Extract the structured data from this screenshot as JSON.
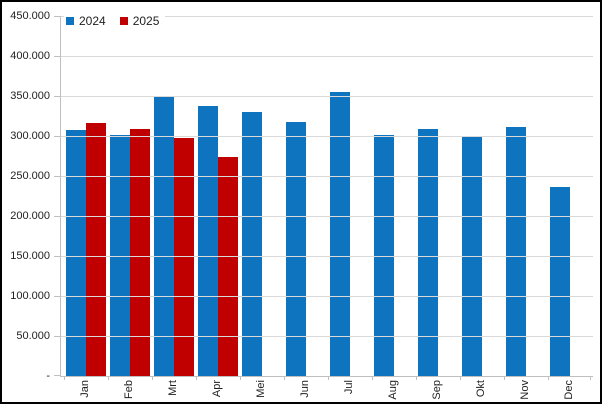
{
  "chart_data": {
    "type": "bar",
    "title": "",
    "xlabel": "",
    "ylabel": "",
    "categories": [
      "Jan",
      "Feb",
      "Mrt",
      "Apr",
      "Mei",
      "Jun",
      "Jul",
      "Aug",
      "Sep",
      "Okt",
      "Nov",
      "Dec"
    ],
    "series": [
      {
        "name": "2024",
        "color": "#0E74C0",
        "values": [
          307000,
          301000,
          350000,
          338000,
          330000,
          318000,
          355000,
          301000,
          309000,
          299000,
          311000,
          236000
        ]
      },
      {
        "name": "2025",
        "color": "#C00000",
        "values": [
          316000,
          309000,
          298000,
          274000,
          null,
          null,
          null,
          null,
          null,
          null,
          null,
          null
        ]
      }
    ],
    "ylim": [
      0,
      450000
    ],
    "ytick_step": 50000,
    "ytick_labels_top_to_bottom": [
      "450.000",
      "400.000",
      "350.000",
      "300.000",
      "250.000",
      "200.000",
      "150.000",
      "100.000",
      "50.000",
      "-"
    ],
    "grid": true,
    "legend_position": "top-left"
  },
  "legend": {
    "items": [
      {
        "label": "2024",
        "color": "#0E74C0"
      },
      {
        "label": "2025",
        "color": "#C00000"
      }
    ]
  },
  "colors": {
    "gridline": "#D9D9D9",
    "axis": "#BFBFBF",
    "text": "#1F1F1F",
    "background": "#FFFFFF",
    "frame_border": "#000000"
  }
}
